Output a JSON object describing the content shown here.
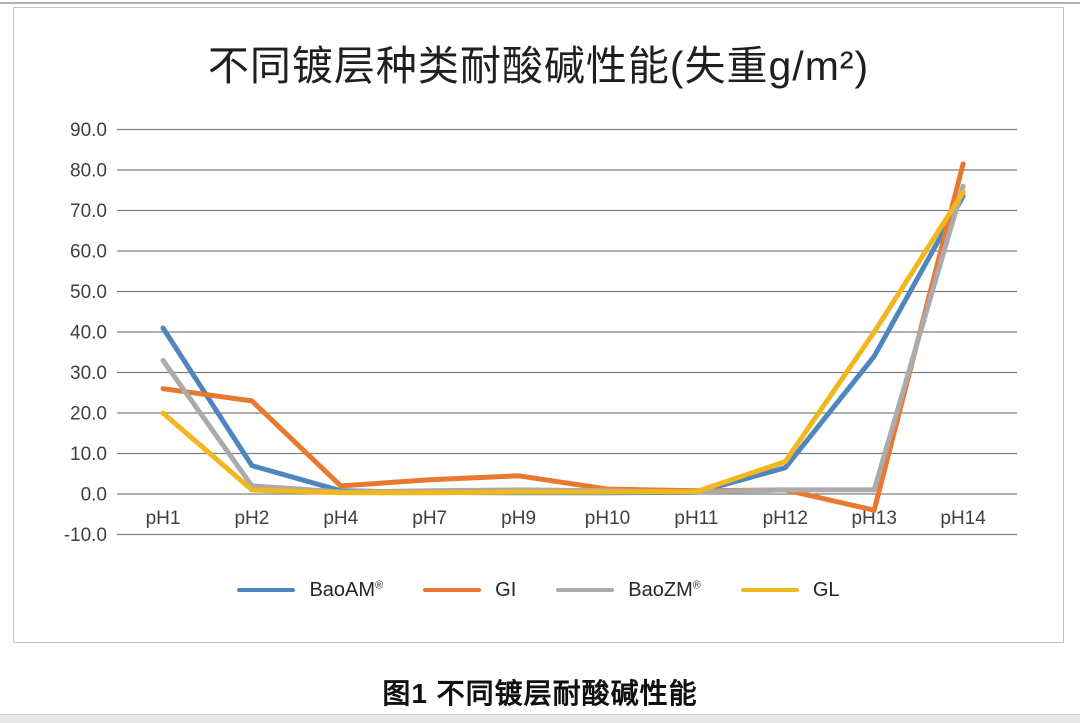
{
  "page": {
    "caption": "图1 不同镀层耐酸碱性能"
  },
  "chart_data": {
    "type": "line",
    "title": "不同镀层种类耐酸碱性能(失重g/m²)",
    "categories": [
      "pH1",
      "pH2",
      "pH4",
      "pH7",
      "pH9",
      "pH10",
      "pH11",
      "pH12",
      "pH13",
      "pH14"
    ],
    "series": [
      {
        "name": "BaoAM®",
        "color": "#4E86C0",
        "values": [
          41,
          7,
          0.8,
          0.4,
          0.3,
          0.3,
          0.4,
          6.5,
          34,
          73.5
        ]
      },
      {
        "name": "GI",
        "color": "#E8792E",
        "values": [
          26,
          23,
          2,
          3.5,
          4.5,
          1.2,
          0.8,
          1,
          -4,
          81.5
        ]
      },
      {
        "name": "BaoZM®",
        "color": "#ABABAB",
        "values": [
          33,
          2,
          0.5,
          0.8,
          1,
          0.8,
          0.5,
          1,
          1,
          76
        ]
      },
      {
        "name": "GL",
        "color": "#F0B81E",
        "values": [
          20,
          1,
          0.3,
          0.3,
          0.5,
          0.5,
          0.6,
          8,
          40,
          74.5
        ]
      }
    ],
    "ylim": [
      -10,
      90
    ],
    "ytick_step": 10,
    "ytick_labels": [
      "90.0",
      "80.0",
      "70.0",
      "60.0",
      "50.0",
      "40.0",
      "30.0",
      "20.0",
      "10.0",
      "0.0",
      "-10.0"
    ],
    "xlabel": "",
    "ylabel": "",
    "grid": true,
    "gridline_color": "#7f7f7f",
    "axis_text_color": "#404040",
    "legend_position": "bottom"
  }
}
